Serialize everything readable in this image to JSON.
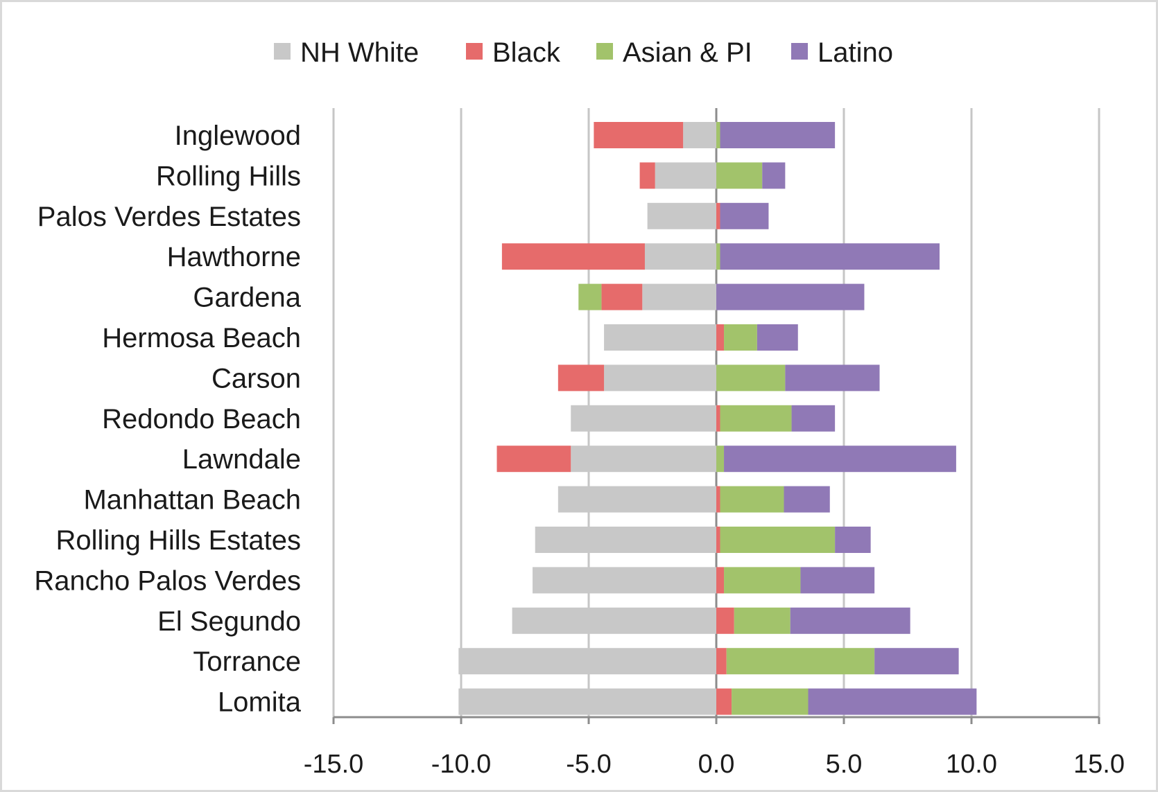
{
  "chart_data": {
    "type": "bar",
    "orientation": "horizontal",
    "stacking": "diverging",
    "categories": [
      "Inglewood",
      "Rolling Hills",
      "Palos Verdes Estates",
      "Hawthorne",
      "Gardena",
      "Hermosa Beach",
      "Carson",
      "Redondo Beach",
      "Lawndale",
      "Manhattan Beach",
      "Rolling Hills Estates",
      "Rancho Palos Verdes",
      "El Segundo",
      "Torrance",
      "Lomita"
    ],
    "series": [
      {
        "name": "NH White",
        "color": "#c8c8c8",
        "values": [
          -1.3,
          -2.4,
          -2.7,
          -2.8,
          -2.9,
          -4.4,
          -4.4,
          -5.7,
          -5.7,
          -6.2,
          -7.1,
          -7.2,
          -8.0,
          -10.1,
          -10.1
        ]
      },
      {
        "name": "Black",
        "color": "#e66b6b",
        "values": [
          -3.5,
          -0.6,
          0.15,
          -5.6,
          -1.6,
          0.3,
          -1.8,
          0.15,
          -2.9,
          0.15,
          0.15,
          0.3,
          0.7,
          0.4,
          0.6
        ]
      },
      {
        "name": "Asian & PI",
        "color": "#a2c36b",
        "values": [
          0.15,
          1.8,
          0.0,
          0.15,
          -0.9,
          1.3,
          2.7,
          2.8,
          0.3,
          2.5,
          4.5,
          3.0,
          2.2,
          5.8,
          3.0
        ]
      },
      {
        "name": "Latino",
        "color": "#9079b6",
        "values": [
          4.5,
          0.9,
          1.9,
          8.6,
          5.8,
          1.6,
          3.7,
          1.7,
          9.1,
          1.8,
          1.4,
          2.9,
          4.7,
          3.3,
          6.6
        ]
      }
    ],
    "x_ticks": [
      "-15.0",
      "-10.0",
      "-5.0",
      "0.0",
      "5.0",
      "10.0",
      "15.0"
    ],
    "xlim": [
      -15,
      15
    ],
    "title": "",
    "xlabel": "",
    "ylabel": "",
    "grid": "vertical",
    "legend_position": "top"
  }
}
